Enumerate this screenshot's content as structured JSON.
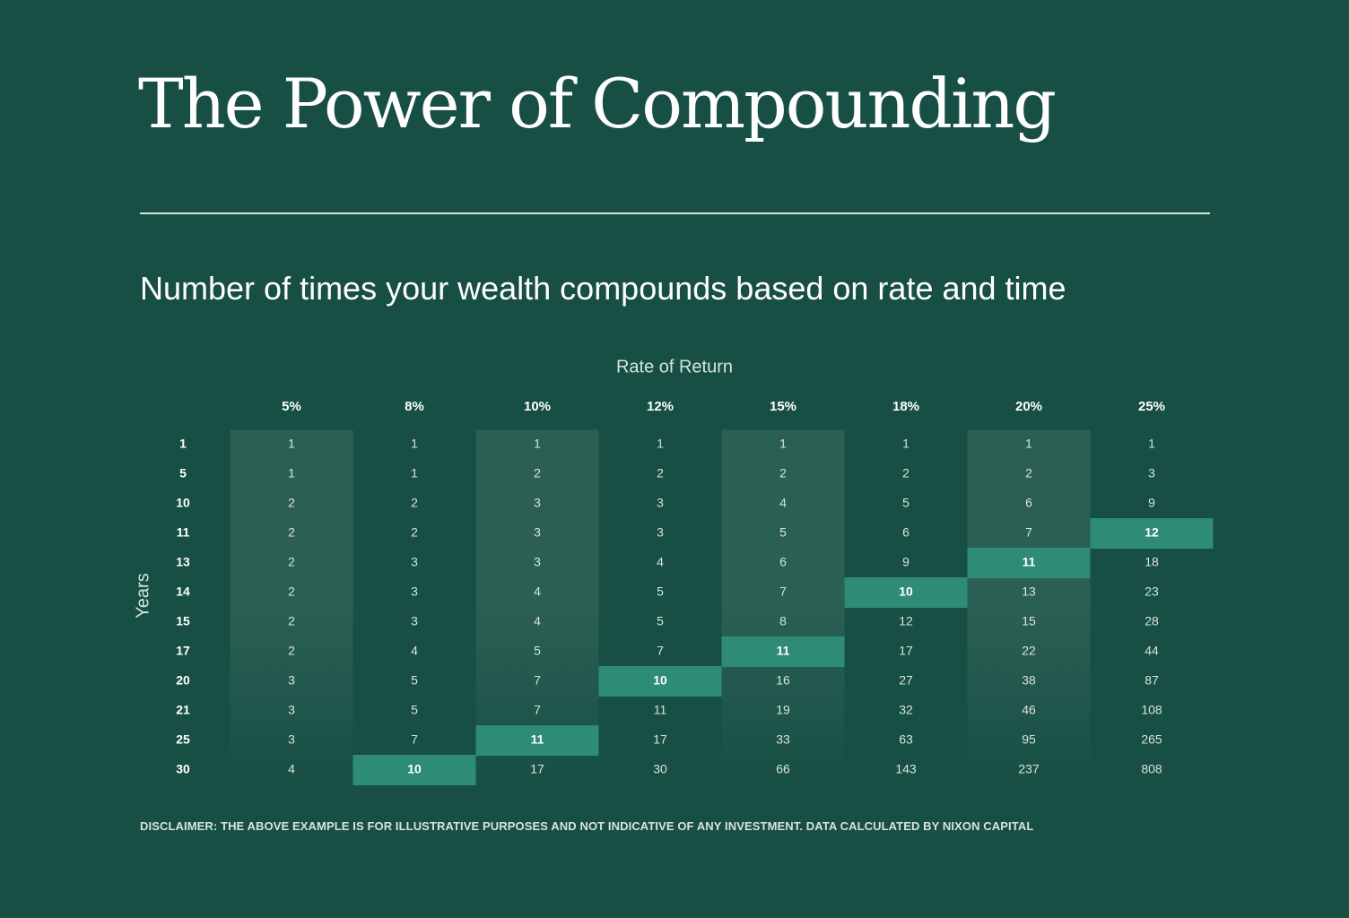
{
  "title": "The Power of Compounding",
  "subtitle": "Number of times your wealth compounds based on rate and time",
  "caption": "DISCLAIMER: THE ABOVE EXAMPLE IS FOR ILLUSTRATIVE PURPOSES AND NOT INDICATIVE OF ANY INVESTMENT. DATA CALCULATED BY NIXON CAPITAL",
  "colors": {
    "background": "#174f44",
    "stripe": "#2b5f54",
    "highlight": "#2e8b76",
    "text_light": "#d7e3df",
    "text_white": "#ffffff"
  },
  "chart_data": {
    "type": "table",
    "title": "",
    "xlabel": "Rate of Return",
    "ylabel": "Years",
    "columns": [
      "5%",
      "8%",
      "10%",
      "12%",
      "15%",
      "18%",
      "20%",
      "25%"
    ],
    "rows": [
      "1",
      "5",
      "10",
      "11",
      "13",
      "14",
      "15",
      "17",
      "20",
      "21",
      "25",
      "30"
    ],
    "values": [
      [
        1,
        1,
        1,
        1,
        1,
        1,
        1,
        1
      ],
      [
        1,
        1,
        2,
        2,
        2,
        2,
        2,
        3
      ],
      [
        2,
        2,
        3,
        3,
        4,
        5,
        6,
        9
      ],
      [
        2,
        2,
        3,
        3,
        5,
        6,
        7,
        12
      ],
      [
        2,
        3,
        3,
        4,
        6,
        9,
        11,
        18
      ],
      [
        2,
        3,
        4,
        5,
        7,
        10,
        13,
        23
      ],
      [
        2,
        3,
        4,
        5,
        8,
        12,
        15,
        28
      ],
      [
        2,
        4,
        5,
        7,
        11,
        17,
        22,
        44
      ],
      [
        3,
        5,
        7,
        10,
        16,
        27,
        38,
        87
      ],
      [
        3,
        5,
        7,
        11,
        19,
        32,
        46,
        108
      ],
      [
        3,
        7,
        11,
        17,
        33,
        63,
        95,
        265
      ],
      [
        4,
        10,
        17,
        30,
        66,
        143,
        237,
        808
      ]
    ],
    "highlighted_cells": [
      {
        "row": "30",
        "column": "8%"
      },
      {
        "row": "25",
        "column": "10%"
      },
      {
        "row": "20",
        "column": "12%"
      },
      {
        "row": "17",
        "column": "15%"
      },
      {
        "row": "14",
        "column": "18%"
      },
      {
        "row": "13",
        "column": "20%"
      },
      {
        "row": "11",
        "column": "25%"
      }
    ],
    "shaded_columns": [
      "5%",
      "10%",
      "15%",
      "20%"
    ]
  }
}
